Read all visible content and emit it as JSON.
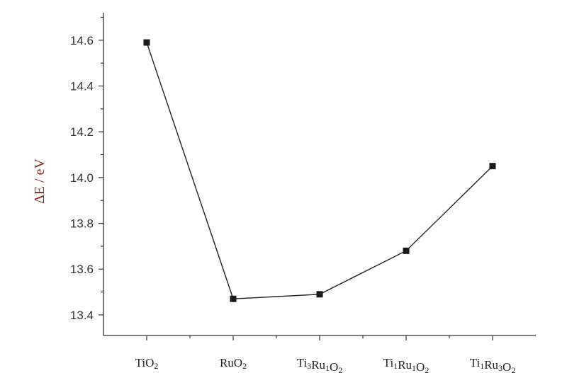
{
  "chart_data": {
    "type": "line",
    "title": "",
    "xlabel": "",
    "ylabel": "ΔE / eV",
    "categories": [
      {
        "base": "TiO",
        "sub": "2"
      },
      {
        "base": "RuO",
        "sub": "2"
      },
      {
        "base": "Ti",
        "sub": "3",
        "base2": "Ru",
        "sub2": "1",
        "base3": "O",
        "sub3": "2"
      },
      {
        "base": "Ti",
        "sub": "1",
        "base2": "Ru",
        "sub2": "1",
        "base3": "O",
        "sub3": "2"
      },
      {
        "base": "Ti",
        "sub": "1",
        "base2": "Ru",
        "sub2": "3",
        "base3": "O",
        "sub3": "2"
      }
    ],
    "series": [
      {
        "values": [
          14.59,
          13.47,
          13.49,
          13.68,
          14.05
        ]
      }
    ],
    "ylim": [
      13.31,
      14.72
    ],
    "yticks": [
      "13.4",
      "13.6",
      "13.8",
      "14.0",
      "14.2",
      "14.4",
      "14.6"
    ],
    "grid": false,
    "legend": "none",
    "colors": {
      "line": "#222222",
      "marker": "#1a1a1a",
      "ylabel": "#8a2b1f"
    }
  }
}
